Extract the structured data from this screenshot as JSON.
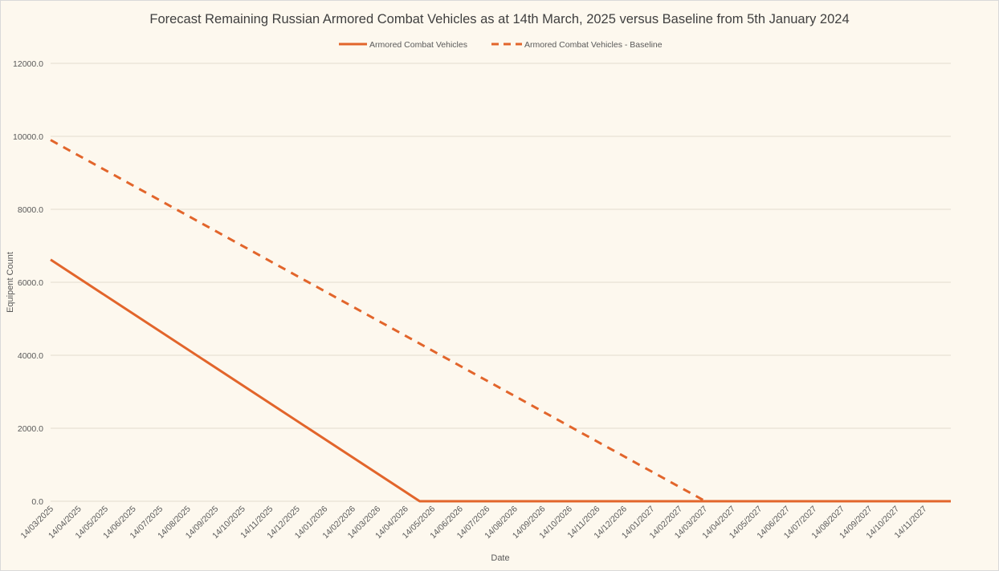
{
  "chart_data": {
    "type": "line",
    "title": "Forecast Remaining Russian Armored Combat Vehicles as at 14th March, 2025 versus Baseline from 5th January 2024",
    "xlabel": "Date",
    "ylabel": "Equipent Count",
    "ylim": [
      0,
      12000
    ],
    "yticks": [
      "0.0",
      "2000.0",
      "4000.0",
      "6000.0",
      "8000.0",
      "10000.0",
      "12000.0"
    ],
    "xlim": [
      "2025-03-14",
      "2027-12-14"
    ],
    "categories": [
      "14/03/2025",
      "14/04/2025",
      "14/05/2025",
      "14/06/2025",
      "14/07/2025",
      "14/08/2025",
      "14/09/2025",
      "14/10/2025",
      "14/11/2025",
      "14/12/2025",
      "14/01/2026",
      "14/02/2026",
      "14/03/2026",
      "14/04/2026",
      "14/05/2026",
      "14/06/2026",
      "14/07/2026",
      "14/08/2026",
      "14/09/2026",
      "14/10/2026",
      "14/11/2026",
      "14/12/2026",
      "14/01/2027",
      "14/02/2027",
      "14/03/2027",
      "14/04/2027",
      "14/05/2027",
      "14/06/2027",
      "14/07/2027",
      "14/08/2027",
      "14/09/2027",
      "14/10/2027",
      "14/11/2027"
    ],
    "grid": true,
    "legend_position": "top",
    "series": [
      {
        "name": "Armored Combat Vehicles",
        "style": "solid",
        "color": "#e2652b",
        "points": [
          [
            "2025-03-14",
            6620
          ],
          [
            "2026-04-30",
            0
          ],
          [
            "2027-12-14",
            0
          ]
        ]
      },
      {
        "name": "Armored Combat Vehicles - Baseline",
        "style": "dashed",
        "color": "#e2652b",
        "points": [
          [
            "2025-03-14",
            9900
          ],
          [
            "2027-03-15",
            0
          ]
        ]
      }
    ]
  }
}
